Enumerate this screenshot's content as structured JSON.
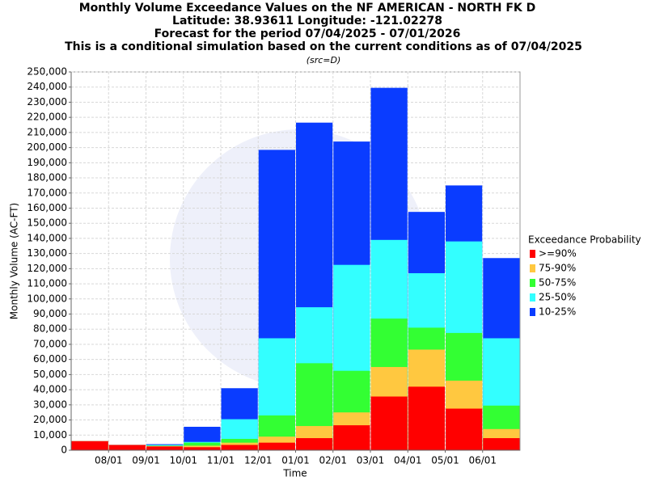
{
  "chart_data": {
    "type": "bar",
    "overlap": true,
    "title": [
      "Monthly Volume Exceedance Values on the NF AMERICAN - NORTH FK D",
      "Latitude: 38.93611 Longitude: -121.02278",
      "Forecast for the period 07/04/2025 - 07/01/2026",
      "This is a conditional simulation based on the current conditions as of 07/04/2025"
    ],
    "subtitle": "(src=D)",
    "x_label": "Time",
    "y_label": "Monthly Volume (AC-FT)",
    "legend_title": "Exceedance Probability",
    "legend": "right",
    "grid": true,
    "categories": [
      null,
      null,
      null,
      null,
      null,
      null,
      null,
      null,
      null,
      null,
      null,
      null
    ],
    "xticks": [
      "08/01",
      "09/01",
      "10/01",
      "11/01",
      "12/01",
      "01/01",
      "02/01",
      "03/01",
      "04/01",
      "05/01",
      "06/01"
    ],
    "ylim": [
      0,
      250000
    ],
    "yticks": [
      0,
      {
        "value": 10000,
        "label": "10,000"
      },
      {
        "value": 20000,
        "label": "20,000"
      },
      {
        "value": 30000,
        "label": "30,000"
      },
      {
        "value": 40000,
        "label": "40,000"
      },
      {
        "value": 50000,
        "label": "50,000"
      },
      {
        "value": 60000,
        "label": "60,000"
      },
      {
        "value": 70000,
        "label": "70,000"
      },
      {
        "value": 80000,
        "label": "80,000"
      },
      {
        "value": 90000,
        "label": "90,000"
      },
      {
        "value": 100000,
        "label": "100,000"
      },
      {
        "value": 110000,
        "label": "110,000"
      },
      {
        "value": 120000,
        "label": "120,000"
      },
      {
        "value": 130000,
        "label": "130,000"
      },
      {
        "value": 140000,
        "label": "140,000"
      },
      {
        "value": 150000,
        "label": "150,000"
      },
      {
        "value": 160000,
        "label": "160,000"
      },
      {
        "value": 170000,
        "label": "170,000"
      },
      {
        "value": 180000,
        "label": "180,000"
      },
      {
        "value": 190000,
        "label": "190,000"
      },
      {
        "value": 200000,
        "label": "200,000"
      },
      {
        "value": 210000,
        "label": "210,000"
      },
      {
        "value": 220000,
        "label": "220,000"
      },
      {
        "value": 230000,
        "label": "230,000"
      },
      {
        "value": 240000,
        "label": "240,000"
      },
      {
        "value": 250000,
        "label": "250,000"
      }
    ],
    "series": [
      {
        "name": ">=90%",
        "color": "#ff0000",
        "values": [
          6000,
          3500,
          2500,
          2000,
          3500,
          5000,
          8000,
          16500,
          35500,
          42000,
          27500,
          8000
        ]
      },
      {
        "name": "75-90%",
        "color": "#ffc840",
        "values": [
          6000,
          3500,
          2800,
          3000,
          5000,
          9000,
          16000,
          25000,
          55000,
          66500,
          46000,
          14000
        ]
      },
      {
        "name": "50-75%",
        "color": "#33ff33",
        "values": [
          6000,
          3500,
          3000,
          5000,
          7500,
          23000,
          57500,
          52500,
          87000,
          81000,
          77500,
          29500
        ]
      },
      {
        "name": "25-50%",
        "color": "#33ffff",
        "values": [
          6000,
          3500,
          3500,
          5500,
          20500,
          74000,
          94500,
          122500,
          139000,
          117000,
          138000,
          74000
        ]
      },
      {
        "name": "10-25%",
        "color": "#0a3cff",
        "values": [
          6000,
          3500,
          4000,
          15500,
          41000,
          198500,
          216500,
          204000,
          239500,
          157500,
          175000,
          127000
        ]
      }
    ]
  }
}
